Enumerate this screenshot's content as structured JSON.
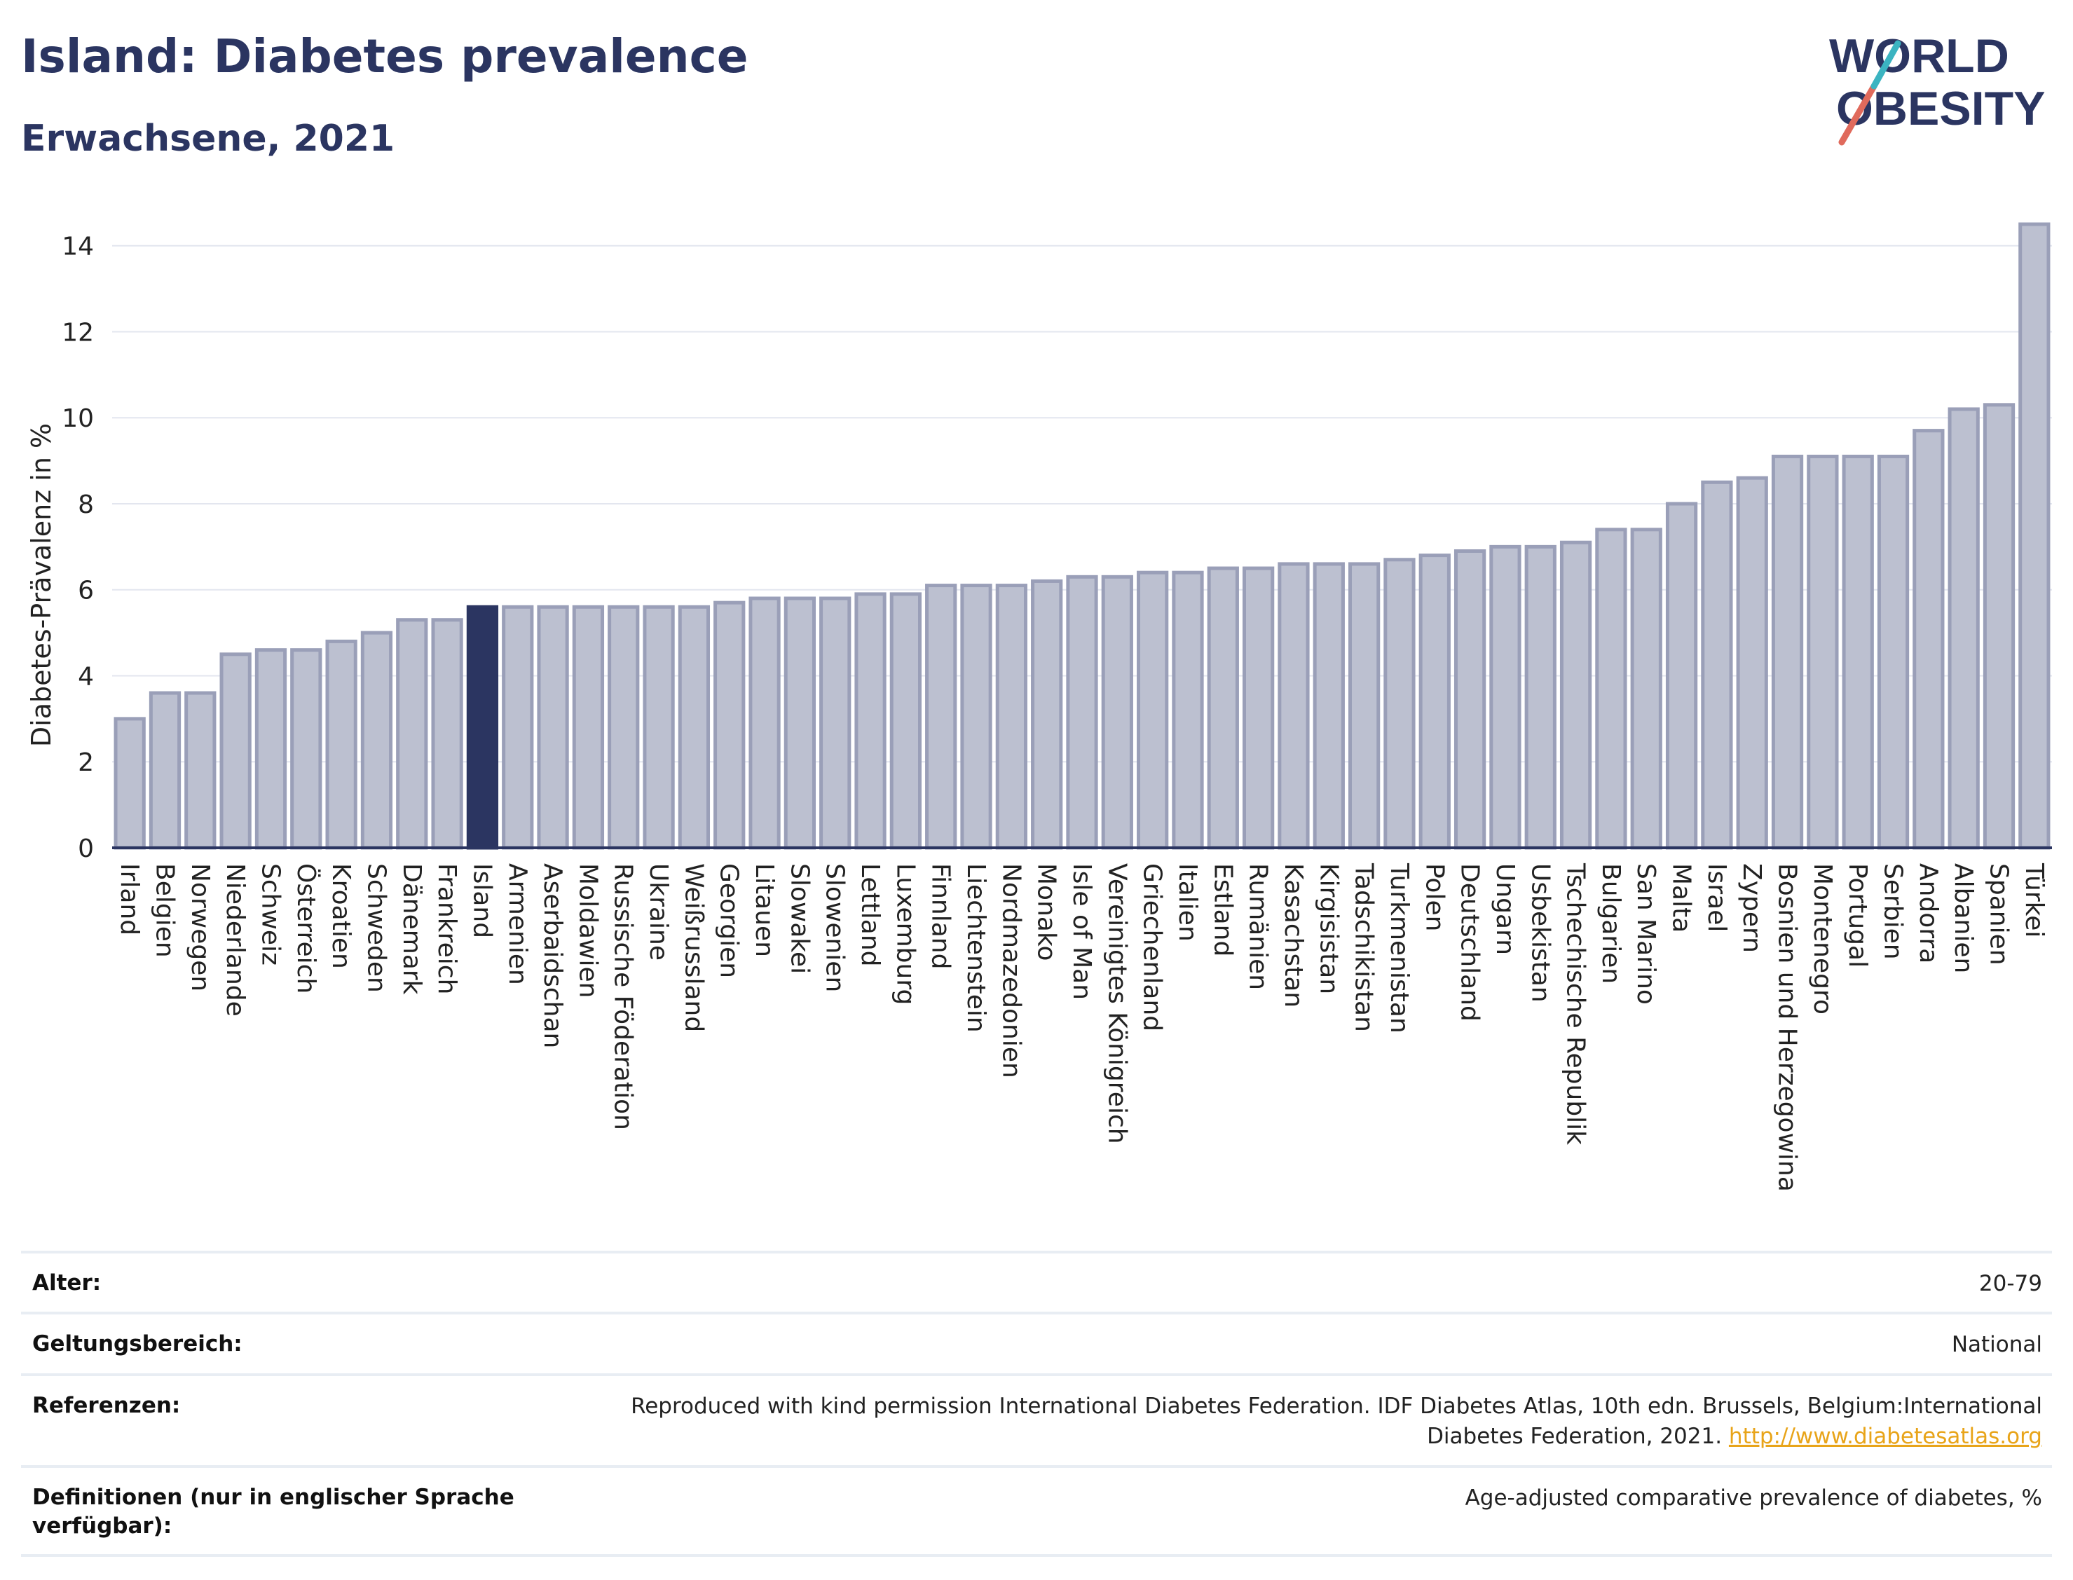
{
  "header": {
    "title": "Island: Diabetes prevalence",
    "subtitle": "Erwachsene, 2021"
  },
  "logo": {
    "line1": "WORLD",
    "line2": "OBESITY",
    "colors": {
      "text": "#2b3561",
      "slash_red": "#e06a5c",
      "slash_teal": "#3bb4c1"
    }
  },
  "chart_data": {
    "type": "bar",
    "ylabel": "Diabetes-Prävalenz in %",
    "ylim": [
      0,
      14.5
    ],
    "yticks": [
      0,
      2,
      4,
      6,
      8,
      10,
      12,
      14
    ],
    "grid": true,
    "highlight": "Island",
    "colors": {
      "bar": "#bcc0d0",
      "bar_edge": "#9a9fb8",
      "highlight": "#2b3561",
      "axis": "#2b3561",
      "grid": "#e3e6ef"
    },
    "categories": [
      "Irland",
      "Belgien",
      "Norwegen",
      "Niederlande",
      "Schweiz",
      "Österreich",
      "Kroatien",
      "Schweden",
      "Dänemark",
      "Frankreich",
      "Island",
      "Armenien",
      "Aserbaidschan",
      "Moldawien",
      "Russische Föderation",
      "Ukraine",
      "Weißrussland",
      "Georgien",
      "Litauen",
      "Slowakei",
      "Slowenien",
      "Lettland",
      "Luxemburg",
      "Finnland",
      "Liechtenstein",
      "Nordmazedonien",
      "Monako",
      "Isle of Man",
      "Vereinigtes Königreich",
      "Griechenland",
      "Italien",
      "Estland",
      "Rumänien",
      "Kasachstan",
      "Kirgisistan",
      "Tadschikistan",
      "Turkmenistan",
      "Polen",
      "Deutschland",
      "Ungarn",
      "Usbekistan",
      "Tschechische Republik",
      "Bulgarien",
      "San Marino",
      "Malta",
      "Israel",
      "Zypern",
      "Bosnien und Herzegowina",
      "Montenegro",
      "Portugal",
      "Serbien",
      "Andorra",
      "Albanien",
      "Spanien",
      "Türkei"
    ],
    "values": [
      3.0,
      3.6,
      3.6,
      4.5,
      4.6,
      4.6,
      4.8,
      5.0,
      5.3,
      5.3,
      5.6,
      5.6,
      5.6,
      5.6,
      5.6,
      5.6,
      5.6,
      5.7,
      5.8,
      5.8,
      5.8,
      5.9,
      5.9,
      6.1,
      6.1,
      6.1,
      6.2,
      6.3,
      6.3,
      6.4,
      6.4,
      6.5,
      6.5,
      6.6,
      6.6,
      6.6,
      6.7,
      6.8,
      6.9,
      7.0,
      7.0,
      7.1,
      7.4,
      7.4,
      8.0,
      8.5,
      8.6,
      9.1,
      9.1,
      9.1,
      9.1,
      9.7,
      10.2,
      10.3,
      14.5
    ]
  },
  "meta": [
    {
      "label": "Alter:",
      "value": "20-79"
    },
    {
      "label": "Geltungsbereich:",
      "value": "National"
    },
    {
      "label": "Referenzen:",
      "value": "Reproduced with kind permission International Diabetes Federation.  IDF Diabetes Atlas, 10th edn. Brussels, Belgium:International Diabetes Federation, 2021. ",
      "link": "http://www.diabetesatlas.org"
    },
    {
      "label": "Definitionen (nur in englischer Sprache verfügbar):",
      "value": "Age-adjusted comparative prevalence of diabetes, %"
    }
  ]
}
